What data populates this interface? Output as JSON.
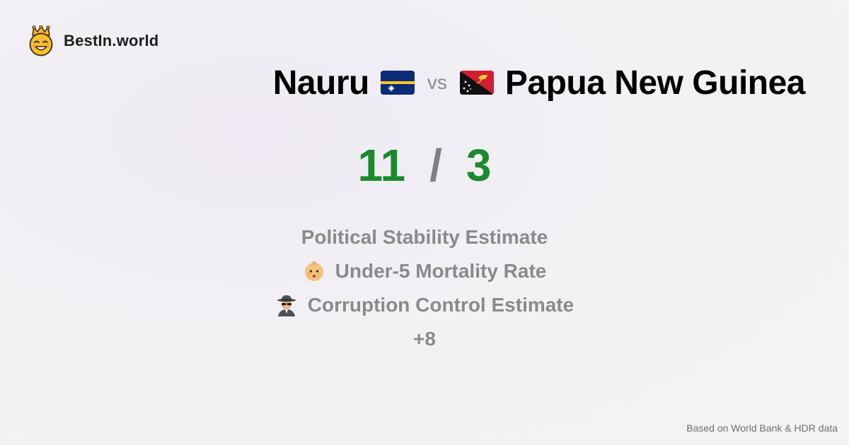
{
  "brand": {
    "name": "BestIn.world",
    "icon": "crowned-smiley-icon"
  },
  "comparison": {
    "left": {
      "name": "Nauru",
      "flag": "nauru-flag-icon"
    },
    "separator": "vs",
    "right": {
      "name": "Papua New Guinea",
      "flag": "papua-new-guinea-flag-icon"
    }
  },
  "score": {
    "left": "11",
    "divider": "/",
    "right": "3",
    "color": "#1b8a2e"
  },
  "metrics": [
    {
      "label": "Political Stability Estimate",
      "icon": ""
    },
    {
      "label": "Under-5 Mortality Rate",
      "icon": "baby-icon"
    },
    {
      "label": "Corruption Control Estimate",
      "icon": "spy-icon"
    }
  ],
  "more_count": "+8",
  "footer": "Based on World Bank & HDR data"
}
